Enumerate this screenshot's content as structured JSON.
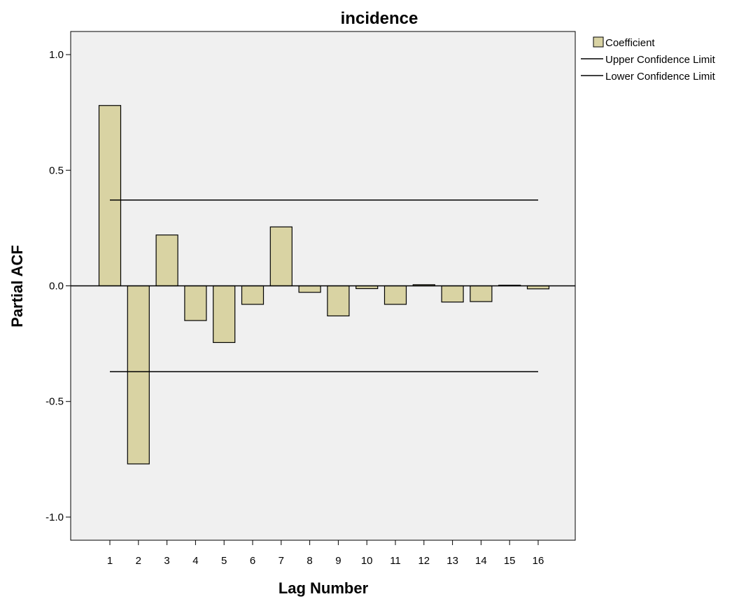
{
  "chart_data": {
    "type": "bar",
    "title": "incidence",
    "xlabel": "Lag Number",
    "ylabel": "Partial ACF",
    "ylim": [
      -1.1,
      1.1
    ],
    "yticks": [
      1.0,
      0.5,
      0.0,
      -0.5,
      -1.0
    ],
    "ytick_labels": [
      "1.0",
      "0.5",
      "0.0",
      "-0.5",
      "-1.0"
    ],
    "categories": [
      "1",
      "2",
      "3",
      "4",
      "5",
      "6",
      "7",
      "8",
      "9",
      "10",
      "11",
      "12",
      "13",
      "14",
      "15",
      "16"
    ],
    "series": [
      {
        "name": "Coefficient",
        "values": [
          0.78,
          -0.77,
          0.22,
          -0.15,
          -0.245,
          -0.08,
          0.255,
          -0.028,
          -0.13,
          -0.012,
          -0.08,
          0.005,
          -0.07,
          -0.068,
          0.003,
          -0.013
        ]
      }
    ],
    "upper_confidence_limit": 0.371,
    "lower_confidence_limit": -0.371,
    "legend": {
      "position": "top-right",
      "items": [
        {
          "label": "Coefficient",
          "kind": "bar"
        },
        {
          "label": "Upper Confidence Limit",
          "kind": "line"
        },
        {
          "label": "Lower Confidence Limit",
          "kind": "line"
        }
      ]
    },
    "colors": {
      "bar_fill": "#d9d3a3",
      "bar_stroke": "#000000",
      "plot_background": "#f0f0f0",
      "line": "#000000"
    },
    "grid": false
  }
}
